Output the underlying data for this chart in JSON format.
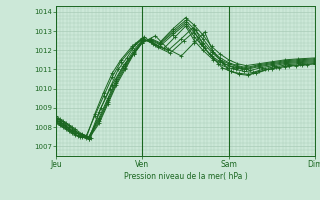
{
  "bg_color": "#cce8d8",
  "plot_bg_color": "#cce8d8",
  "line_color": "#1a6620",
  "grid_color": "#aaccb8",
  "title": "Pression niveau de la mer( hPa )",
  "x_labels": [
    "Jeu",
    "Ven",
    "Sam",
    "Dim"
  ],
  "ylim": [
    1006.5,
    1014.3
  ],
  "yticks": [
    1007,
    1008,
    1009,
    1010,
    1011,
    1012,
    1013,
    1014
  ],
  "num_days": 3.0,
  "series": [
    {
      "x": [
        0,
        0.08,
        0.15,
        0.22,
        0.3,
        0.38,
        0.5,
        0.6,
        0.7,
        0.8,
        0.9,
        1.0,
        1.1,
        1.2,
        1.35,
        1.5,
        1.6,
        1.7,
        1.8,
        1.9,
        2.0,
        2.1,
        2.2,
        2.35,
        2.5,
        2.65,
        2.8,
        3.0
      ],
      "y": [
        1008.2,
        1008.0,
        1007.8,
        1007.6,
        1007.5,
        1007.4,
        1008.2,
        1009.2,
        1010.2,
        1011.0,
        1011.8,
        1012.4,
        1012.6,
        1012.4,
        1013.1,
        1013.7,
        1013.3,
        1012.8,
        1012.2,
        1011.8,
        1011.5,
        1011.3,
        1011.2,
        1011.3,
        1011.4,
        1011.5,
        1011.55,
        1011.6
      ]
    },
    {
      "x": [
        0,
        0.08,
        0.15,
        0.22,
        0.3,
        0.38,
        0.5,
        0.6,
        0.7,
        0.8,
        0.9,
        1.0,
        1.1,
        1.2,
        1.35,
        1.5,
        1.6,
        1.7,
        1.8,
        1.9,
        2.0,
        2.1,
        2.2,
        2.35,
        2.5,
        2.65,
        2.8,
        3.0
      ],
      "y": [
        1008.3,
        1008.1,
        1007.9,
        1007.7,
        1007.55,
        1007.45,
        1008.3,
        1009.3,
        1010.3,
        1011.1,
        1011.85,
        1012.45,
        1012.55,
        1012.35,
        1013.0,
        1013.55,
        1013.1,
        1012.6,
        1012.0,
        1011.6,
        1011.35,
        1011.2,
        1011.1,
        1011.25,
        1011.35,
        1011.45,
        1011.5,
        1011.55
      ]
    },
    {
      "x": [
        0,
        0.08,
        0.15,
        0.22,
        0.3,
        0.38,
        0.5,
        0.6,
        0.7,
        0.8,
        0.9,
        1.0,
        1.1,
        1.2,
        1.35,
        1.5,
        1.6,
        1.7,
        1.8,
        1.9,
        2.0,
        2.1,
        2.2,
        2.35,
        2.5,
        2.65,
        2.8,
        3.0
      ],
      "y": [
        1008.4,
        1008.2,
        1008.0,
        1007.8,
        1007.6,
        1007.5,
        1008.4,
        1009.4,
        1010.4,
        1011.2,
        1011.9,
        1012.5,
        1012.5,
        1012.3,
        1012.9,
        1013.45,
        1012.9,
        1012.4,
        1011.9,
        1011.5,
        1011.3,
        1011.15,
        1011.05,
        1011.2,
        1011.3,
        1011.4,
        1011.45,
        1011.5
      ]
    },
    {
      "x": [
        0,
        0.08,
        0.15,
        0.22,
        0.3,
        0.38,
        0.5,
        0.6,
        0.7,
        0.8,
        0.9,
        1.0,
        1.1,
        1.2,
        1.35,
        1.5,
        1.6,
        1.7,
        1.8,
        1.9,
        2.0,
        2.1,
        2.2,
        2.35,
        2.5,
        2.65,
        2.8,
        3.0
      ],
      "y": [
        1008.5,
        1008.3,
        1008.1,
        1007.9,
        1007.65,
        1007.5,
        1008.5,
        1009.5,
        1010.5,
        1011.3,
        1012.0,
        1012.55,
        1012.45,
        1012.2,
        1012.8,
        1013.35,
        1012.7,
        1012.2,
        1011.7,
        1011.4,
        1011.2,
        1011.1,
        1011.0,
        1011.15,
        1011.25,
        1011.35,
        1011.4,
        1011.45
      ]
    },
    {
      "x": [
        0,
        0.05,
        0.12,
        0.18,
        0.25,
        0.35,
        0.45,
        0.55,
        0.65,
        0.75,
        0.88,
        1.0,
        1.12,
        1.25,
        1.38,
        1.5,
        1.6,
        1.7,
        1.82,
        1.95,
        2.05,
        2.15,
        2.25,
        2.38,
        2.52,
        2.65,
        2.8,
        3.0
      ],
      "y": [
        1008.6,
        1008.4,
        1008.2,
        1008.0,
        1007.7,
        1007.55,
        1008.6,
        1009.6,
        1010.6,
        1011.4,
        1012.1,
        1012.6,
        1012.35,
        1012.1,
        1012.7,
        1013.25,
        1012.5,
        1012.0,
        1011.5,
        1011.3,
        1011.1,
        1011.05,
        1010.95,
        1011.1,
        1011.2,
        1011.3,
        1011.35,
        1011.4
      ]
    },
    {
      "x": [
        0,
        0.05,
        0.12,
        0.18,
        0.25,
        0.35,
        0.45,
        0.55,
        0.65,
        0.75,
        0.88,
        1.0,
        1.15,
        1.3,
        1.45,
        1.58,
        1.68,
        1.78,
        1.88,
        1.98,
        2.08,
        2.18,
        2.28,
        2.42,
        2.55,
        2.68,
        2.82,
        3.0
      ],
      "y": [
        1008.4,
        1008.2,
        1008.0,
        1007.8,
        1007.55,
        1007.45,
        1008.7,
        1009.8,
        1010.8,
        1011.5,
        1012.2,
        1012.65,
        1012.25,
        1012.0,
        1012.6,
        1013.15,
        1012.3,
        1011.8,
        1011.3,
        1011.1,
        1011.0,
        1010.9,
        1010.85,
        1011.05,
        1011.15,
        1011.25,
        1011.3,
        1011.35
      ]
    },
    {
      "x": [
        0,
        0.05,
        0.12,
        0.18,
        0.28,
        0.38,
        0.5,
        0.62,
        0.72,
        0.82,
        0.92,
        1.02,
        1.18,
        1.32,
        1.48,
        1.62,
        1.72,
        1.82,
        1.92,
        2.02,
        2.12,
        2.22,
        2.32,
        2.45,
        2.58,
        2.7,
        2.85,
        3.0
      ],
      "y": [
        1008.3,
        1008.1,
        1007.9,
        1007.7,
        1007.5,
        1007.4,
        1008.8,
        1010.0,
        1011.0,
        1011.6,
        1012.3,
        1012.7,
        1012.15,
        1011.85,
        1012.5,
        1013.05,
        1012.1,
        1011.6,
        1011.1,
        1010.9,
        1010.8,
        1010.75,
        1010.8,
        1011.0,
        1011.1,
        1011.2,
        1011.25,
        1011.3
      ]
    },
    {
      "x": [
        0,
        0.05,
        0.1,
        0.18,
        0.28,
        0.4,
        0.52,
        0.65,
        0.78,
        0.9,
        1.0,
        1.15,
        1.3,
        1.45,
        1.6,
        1.72,
        1.82,
        1.92,
        2.02,
        2.12,
        2.22,
        2.35,
        2.5,
        2.65,
        2.78,
        2.9,
        3.0
      ],
      "y": [
        1008.5,
        1008.3,
        1008.1,
        1007.85,
        1007.6,
        1007.45,
        1009.0,
        1010.2,
        1011.2,
        1011.8,
        1012.4,
        1012.75,
        1012.05,
        1011.7,
        1012.4,
        1012.95,
        1011.9,
        1011.4,
        1010.9,
        1010.75,
        1010.7,
        1010.9,
        1011.05,
        1011.15,
        1011.2,
        1011.25,
        1011.3
      ]
    }
  ]
}
